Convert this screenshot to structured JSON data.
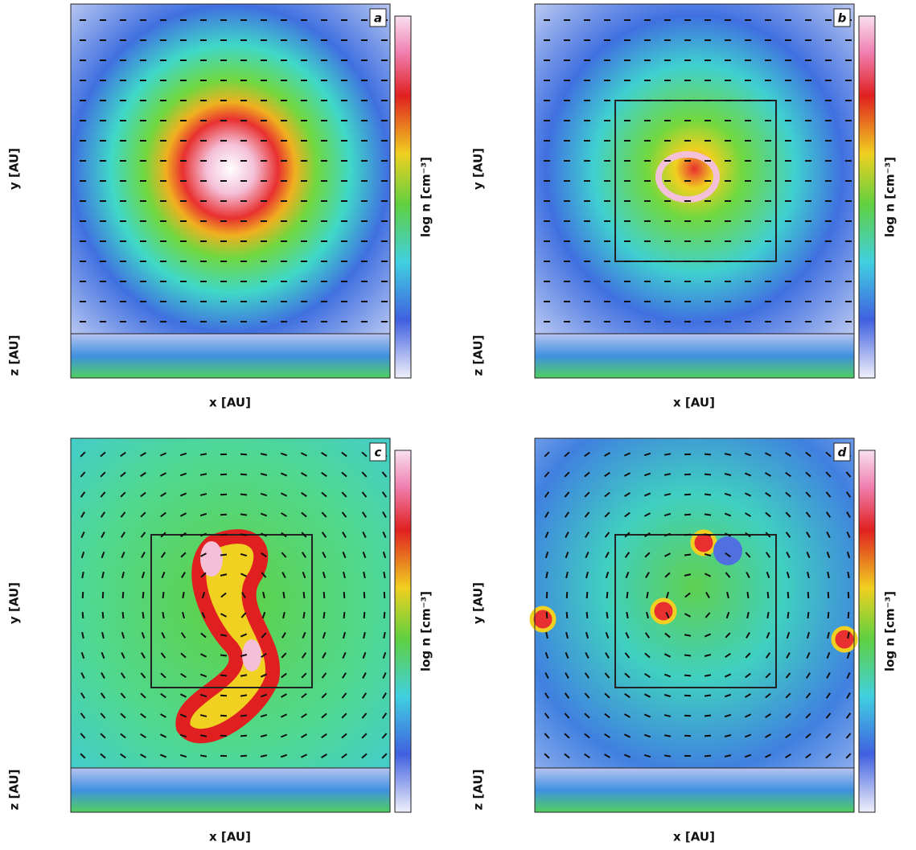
{
  "panels": [
    {
      "label": "a",
      "x_label": "x [AU]",
      "y_label": "y [AU]",
      "z_label": "z [AU]",
      "colorbar_label": "log n [cm⁻³]"
    },
    {
      "label": "b",
      "x_label": "x [AU]",
      "y_label": "y [AU]",
      "z_label": "z [AU]",
      "colorbar_label": "log n [cm⁻³]"
    },
    {
      "label": "c",
      "x_label": "x [AU]",
      "y_label": "y [AU]",
      "z_label": "z [AU]",
      "colorbar_label": "log n [cm⁻³]"
    },
    {
      "label": "d",
      "x_label": "x [AU]",
      "y_label": "y [AU]",
      "z_label": "z [AU]",
      "colorbar_label": "log n [cm⁻³]"
    }
  ]
}
